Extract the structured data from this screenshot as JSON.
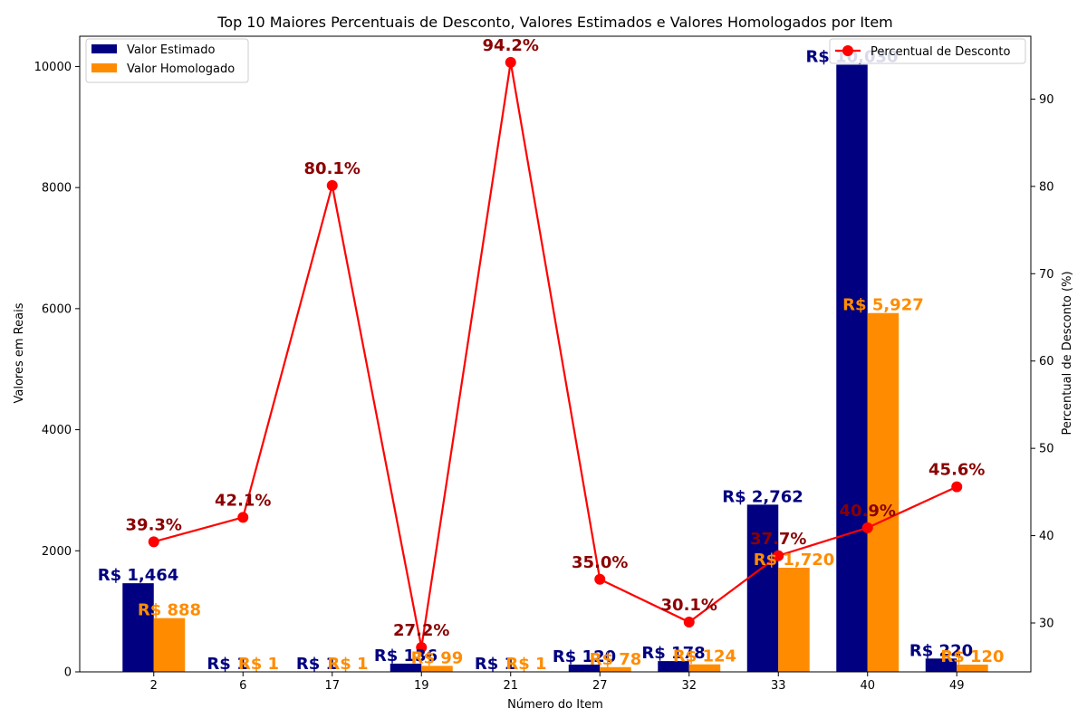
{
  "chart_data": {
    "type": "bar",
    "title": "Top 10 Maiores Percentuais de Desconto, Valores Estimados e Valores Homologados por Item",
    "xlabel": "Número do Item",
    "ylabel": "Valores em Reais",
    "y2label": "Percentual de Desconto (%)",
    "categories": [
      "2",
      "6",
      "17",
      "19",
      "21",
      "27",
      "32",
      "33",
      "40",
      "49"
    ],
    "ylim": [
      0,
      10500
    ],
    "y2lim": [
      24.4,
      97.2
    ],
    "yticks": [
      0,
      2000,
      4000,
      6000,
      8000,
      10000
    ],
    "y2ticks": [
      30,
      40,
      50,
      60,
      70,
      80,
      90
    ],
    "series": [
      {
        "name": "Valor Estimado",
        "kind": "bar",
        "color": "#000080",
        "values": [
          1464,
          1,
          1,
          136,
          1,
          120,
          178,
          2762,
          10030,
          220
        ],
        "labels": [
          "R$ 1,464",
          "R$ 1",
          "R$ 1",
          "R$ 136",
          "R$ 1",
          "R$ 120",
          "R$ 178",
          "R$ 2,762",
          "R$ 10,030",
          "R$ 220"
        ]
      },
      {
        "name": "Valor Homologado",
        "kind": "bar",
        "color": "#ff8c00",
        "values": [
          888,
          1,
          1,
          99,
          1,
          78,
          124,
          1720,
          5927,
          120
        ],
        "labels": [
          "R$ 888",
          "R$ 1",
          "R$ 1",
          "R$ 99",
          "R$ 1",
          "R$ 78",
          "R$ 124",
          "R$ 1,720",
          "R$ 5,927",
          "R$ 120"
        ]
      },
      {
        "name": "Percentual de Desconto",
        "kind": "line",
        "axis": "right",
        "color": "#ff0000",
        "label_color": "#8b0000",
        "values": [
          39.3,
          42.1,
          80.1,
          27.2,
          94.2,
          35.0,
          30.1,
          37.7,
          40.9,
          45.6
        ],
        "labels": [
          "39.3%",
          "42.1%",
          "80.1%",
          "27.2%",
          "94.2%",
          "35.0%",
          "30.1%",
          "37.7%",
          "40.9%",
          "45.6%"
        ]
      }
    ],
    "grid": false,
    "legend_left": "top-left",
    "legend_right": "top-right"
  }
}
